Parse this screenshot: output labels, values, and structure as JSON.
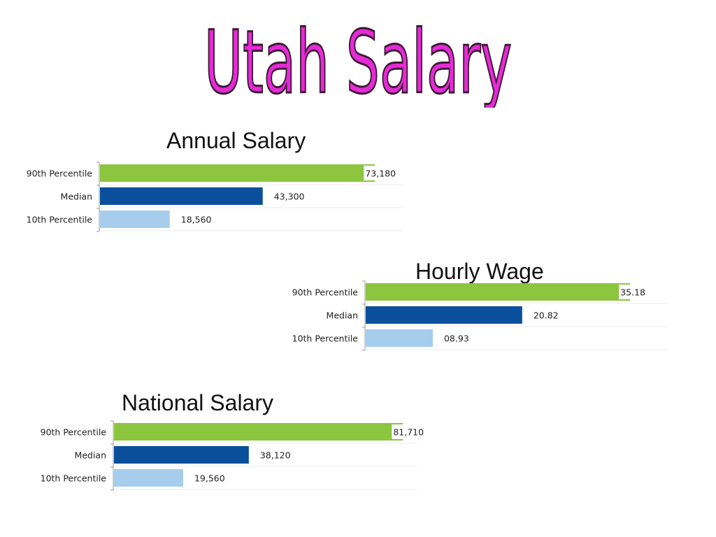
{
  "page": {
    "title": "Utah Salary",
    "title_color": "#e52bd6",
    "title_outline": "#3a1a33"
  },
  "chart_titles": {
    "annual": "Annual Salary",
    "hourly": "Hourly Wage",
    "national": "National Salary"
  },
  "colors": {
    "p90": "#8cc63f",
    "median": "#0a4f9c",
    "p10": "#a6cdec"
  },
  "chart_data": [
    {
      "id": "annual",
      "type": "bar",
      "orientation": "horizontal",
      "title": "Annual Salary",
      "categories": [
        "90th Percentile",
        "Median",
        "10th Percentile"
      ],
      "values": [
        73180,
        43300,
        18560
      ],
      "value_labels": [
        "73,180",
        "43,300",
        "18,560"
      ],
      "xlim": [
        0,
        80000
      ]
    },
    {
      "id": "hourly",
      "type": "bar",
      "orientation": "horizontal",
      "title": "Hourly Wage",
      "categories": [
        "90th Percentile",
        "Median",
        "10th Percentile"
      ],
      "values": [
        35.18,
        20.82,
        8.93
      ],
      "value_labels": [
        "35.18",
        "20.82",
        "08.93"
      ],
      "xlim": [
        0,
        40
      ]
    },
    {
      "id": "national",
      "type": "bar",
      "orientation": "horizontal",
      "title": "National Salary",
      "categories": [
        "90th Percentile",
        "Median",
        "10th Percentile"
      ],
      "values": [
        81710,
        38120,
        19560
      ],
      "value_labels": [
        "81,710",
        "38,120",
        "19,560"
      ],
      "xlim": [
        0,
        85000
      ]
    }
  ]
}
